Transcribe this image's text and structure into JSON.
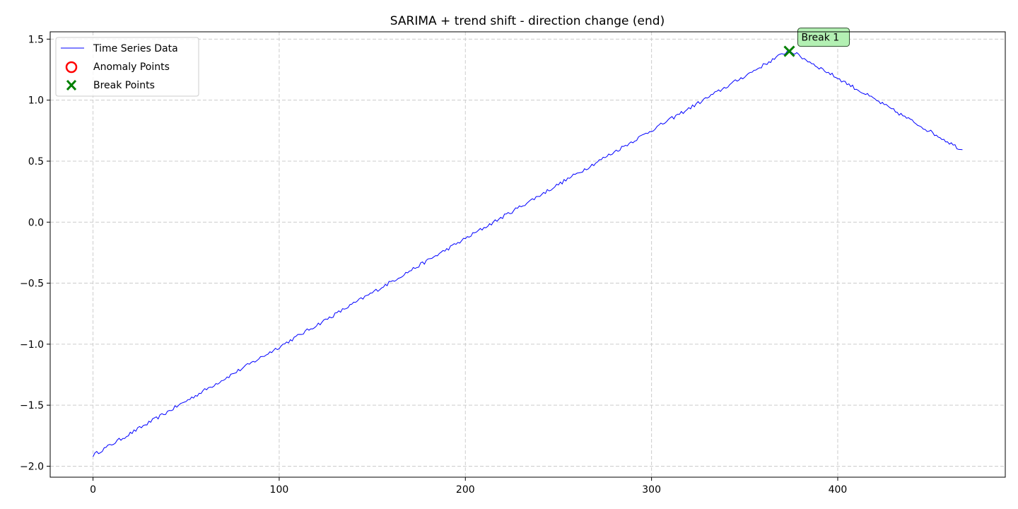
{
  "chart_data": {
    "type": "line",
    "title": "SARIMA + trend shift - direction change (end)",
    "xlabel": "",
    "ylabel": "",
    "xlim": [
      -23,
      490
    ],
    "ylim": [
      -2.09,
      1.56
    ],
    "xticks": [
      0,
      100,
      200,
      300,
      400
    ],
    "yticks": [
      -2.0,
      -1.5,
      -1.0,
      -0.5,
      0.0,
      0.5,
      1.0,
      1.5
    ],
    "xtick_labels": [
      "0",
      "100",
      "200",
      "300",
      "400"
    ],
    "ytick_labels": [
      "−2.0",
      "−1.5",
      "−1.0",
      "−0.5",
      "0.0",
      "0.5",
      "1.0",
      "1.5"
    ],
    "grid": true,
    "legend_position": "top-left",
    "series": [
      {
        "name": "Time Series Data",
        "color": "#0000ff",
        "points": [
          [
            0,
            -1.91
          ],
          [
            374,
            1.41
          ],
          [
            467,
            0.59
          ]
        ]
      }
    ],
    "anomaly_series": {
      "name": "Anomaly Points",
      "color": "#ff0000",
      "points": []
    },
    "break_series": {
      "name": "Break Points",
      "color": "#008000",
      "points": [
        {
          "x": 374,
          "y": 1.4,
          "label": "Break 1"
        }
      ]
    }
  }
}
